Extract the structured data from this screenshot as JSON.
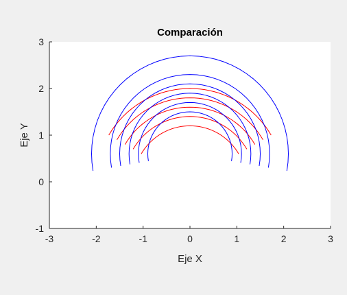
{
  "chart_data": {
    "type": "line",
    "title": "Comparación",
    "xlabel": "Eje X",
    "ylabel": "Eje Y",
    "xlim": [
      -3,
      3
    ],
    "ylim": [
      -1,
      3
    ],
    "xticks": [
      -3,
      -2,
      -1,
      0,
      1,
      2,
      3
    ],
    "yticks": [
      -1,
      0,
      1,
      2,
      3
    ],
    "grid": false,
    "legend": "none",
    "colors": {
      "red_series": "#ff0000",
      "blue_series": "#0000ff",
      "axes_background": "#ffffff",
      "figure_background": "#f0f0f0",
      "axis_color": "#262626"
    },
    "series": [
      {
        "color": "red",
        "shape": "arc",
        "center": [
          0,
          0
        ],
        "radius": 2.0,
        "theta_deg": [
          30,
          150
        ]
      },
      {
        "color": "red",
        "shape": "arc",
        "center": [
          0,
          0
        ],
        "radius": 1.8,
        "theta_deg": [
          30,
          150
        ]
      },
      {
        "color": "red",
        "shape": "arc",
        "center": [
          0,
          0
        ],
        "radius": 1.6,
        "theta_deg": [
          30,
          150
        ]
      },
      {
        "color": "red",
        "shape": "arc",
        "center": [
          0,
          0
        ],
        "radius": 1.4,
        "theta_deg": [
          30,
          150
        ]
      },
      {
        "color": "red",
        "shape": "arc",
        "center": [
          0,
          0
        ],
        "radius": 1.2,
        "theta_deg": [
          30,
          150
        ]
      },
      {
        "color": "blue",
        "shape": "arc",
        "center": [
          0,
          0.6
        ],
        "radius": 0.9,
        "theta_deg": [
          -10,
          190
        ]
      },
      {
        "color": "blue",
        "shape": "arc",
        "center": [
          0,
          0.6
        ],
        "radius": 1.1,
        "theta_deg": [
          -10,
          190
        ]
      },
      {
        "color": "blue",
        "shape": "arc",
        "center": [
          0,
          0.6
        ],
        "radius": 1.3,
        "theta_deg": [
          -10,
          190
        ]
      },
      {
        "color": "blue",
        "shape": "arc",
        "center": [
          0,
          0.6
        ],
        "radius": 1.5,
        "theta_deg": [
          -10,
          190
        ]
      },
      {
        "color": "blue",
        "shape": "arc",
        "center": [
          0,
          0.6
        ],
        "radius": 1.7,
        "theta_deg": [
          -10,
          190
        ]
      },
      {
        "color": "blue",
        "shape": "arc",
        "center": [
          0,
          0.6
        ],
        "radius": 2.1,
        "theta_deg": [
          -10,
          190
        ]
      }
    ]
  }
}
